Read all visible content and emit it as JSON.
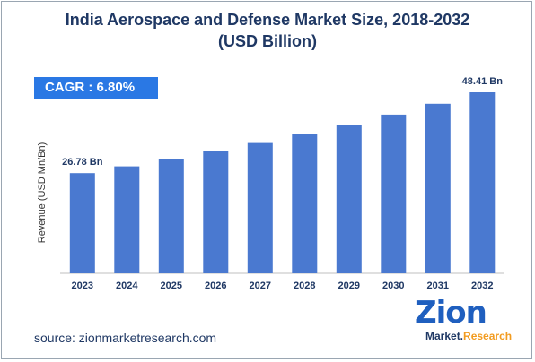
{
  "title_line1": "India Aerospace and Defense Market Size, 2018-2032",
  "title_line2": "(USD Billion)",
  "cagr_label": "CAGR : 6.80%",
  "source": "source: zionmarketresearch.com",
  "logo": {
    "main": "Zion",
    "sub_left": "Market.",
    "sub_right": "Research"
  },
  "colors": {
    "bar": "#4a79d0",
    "title": "#1f3864",
    "cagr_bg": "#2a78e4"
  },
  "chart_data": {
    "type": "bar",
    "categories": [
      "2023",
      "2024",
      "2025",
      "2026",
      "2027",
      "2028",
      "2029",
      "2030",
      "2031",
      "2032"
    ],
    "values": [
      26.78,
      28.6,
      30.55,
      32.63,
      34.85,
      37.22,
      39.75,
      42.45,
      45.34,
      48.41
    ],
    "data_labels": {
      "0": "26.78 Bn",
      "9": "48.41 Bn"
    },
    "ylabel": "Revenue (USD Mn/Bn)",
    "xlabel": "",
    "ylim": [
      0,
      52
    ],
    "grid": false,
    "legend": "none"
  }
}
